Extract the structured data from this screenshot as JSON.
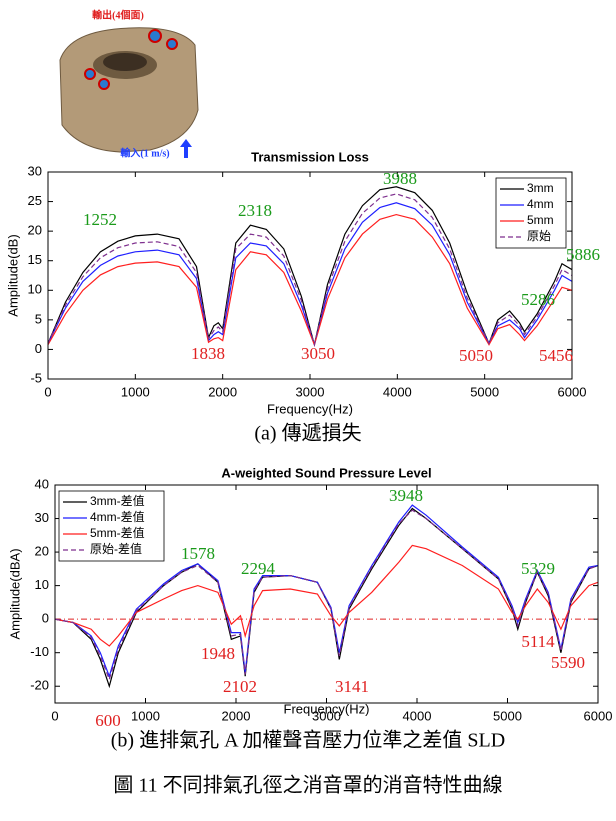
{
  "image_labels": {
    "output": "輸出(4個面)",
    "input": "輸入(1 m/s)"
  },
  "captions": {
    "a": "(a)  傳遞損失",
    "b": "(b)  進排氣孔 A 加權聲音壓力位準之差值 SLD",
    "figure": "圖 11 不同排氣孔徑之消音罩的消音特性曲線"
  },
  "chart_data": [
    {
      "type": "line",
      "title": "Transmission Loss",
      "x_label": "Frequency(Hz)",
      "y_label": "Amplitude(dB)",
      "x": [
        0,
        200,
        400,
        600,
        800,
        1000,
        1252,
        1500,
        1700,
        1838,
        1900,
        1950,
        2000,
        2150,
        2318,
        2500,
        2700,
        2900,
        3050,
        3200,
        3400,
        3600,
        3800,
        3988,
        4200,
        4400,
        4600,
        4800,
        5050,
        5150,
        5286,
        5400,
        5456,
        5600,
        5800,
        5886,
        6000
      ],
      "series": [
        {
          "name": "3mm",
          "color": "#000000",
          "dash": "solid",
          "values": [
            1,
            8,
            13,
            16.5,
            18.3,
            19.2,
            19.5,
            18.7,
            14,
            2,
            4,
            4.5,
            3.5,
            18,
            21,
            20.3,
            17,
            9,
            0.8,
            11,
            19.5,
            24.3,
            27,
            27.5,
            26.5,
            23.5,
            18,
            9.5,
            1,
            5,
            6.5,
            4.5,
            3,
            6,
            11.5,
            14.5,
            13.5
          ]
        },
        {
          "name": "4mm",
          "color": "#1f1fff",
          "dash": "solid",
          "values": [
            1,
            7,
            11.5,
            14.2,
            15.8,
            16.5,
            16.8,
            16,
            12,
            1.5,
            2.5,
            3,
            2.5,
            15.5,
            18,
            17.5,
            14.5,
            7.5,
            0.8,
            9.5,
            17,
            21.5,
            24,
            24.8,
            23.8,
            21,
            16,
            8,
            1,
            4,
            5,
            3.5,
            2,
            5,
            10,
            12.5,
            11.5
          ]
        },
        {
          "name": "5mm",
          "color": "#ff1f1f",
          "dash": "solid",
          "values": [
            0.8,
            6,
            10,
            12.6,
            14,
            14.6,
            14.8,
            14,
            10.5,
            1.2,
            1.8,
            2,
            1.5,
            13.5,
            16.5,
            16,
            13,
            6.5,
            0.8,
            8.5,
            15.5,
            19.5,
            22,
            22.8,
            22,
            19,
            14.5,
            7,
            0.8,
            3.5,
            4.2,
            2.5,
            1.5,
            4,
            8.5,
            10.5,
            10
          ]
        },
        {
          "name": "原始",
          "color": "#7e2f8e",
          "dash": "dashed",
          "values": [
            1,
            7.5,
            12.3,
            15.5,
            17.2,
            18,
            18.2,
            17.4,
            13,
            1.8,
            3.2,
            3.8,
            3,
            17,
            19.5,
            19,
            15.8,
            8.3,
            0.8,
            10.3,
            18.3,
            23,
            25.6,
            26.3,
            25.3,
            22.3,
            17,
            8.7,
            1,
            4.5,
            5.8,
            4,
            2.5,
            5.5,
            10.8,
            13.5,
            12.5
          ]
        }
      ],
      "xlim": [
        0,
        6000
      ],
      "xticks": [
        0,
        1000,
        2000,
        3000,
        4000,
        5000,
        6000
      ],
      "ylim": [
        -5,
        30
      ],
      "yticks": [
        -5,
        0,
        5,
        10,
        15,
        20,
        25,
        30
      ],
      "legend": "upper right",
      "annotations": [
        {
          "text": "1252",
          "color": "#1a9a1a"
        },
        {
          "text": "2318",
          "color": "#1a9a1a"
        },
        {
          "text": "3988",
          "color": "#1a9a1a"
        },
        {
          "text": "5286",
          "color": "#1a9a1a"
        },
        {
          "text": "5886",
          "color": "#1a9a1a"
        },
        {
          "text": "1838",
          "color": "#e02020"
        },
        {
          "text": "3050",
          "color": "#e02020"
        },
        {
          "text": "5050",
          "color": "#e02020"
        },
        {
          "text": "5456",
          "color": "#e02020"
        }
      ]
    },
    {
      "type": "line",
      "title": "A-weighted Sound Pressure Level",
      "x_label": "Frequency(Hz)",
      "y_label": "Amplitude(dBA)",
      "x": [
        0,
        200,
        400,
        500,
        600,
        700,
        900,
        1200,
        1400,
        1578,
        1800,
        1948,
        2050,
        2102,
        2200,
        2294,
        2600,
        2900,
        3050,
        3141,
        3250,
        3500,
        3800,
        3948,
        4100,
        4500,
        4900,
        5050,
        5114,
        5200,
        5329,
        5450,
        5590,
        5700,
        5900,
        6000
      ],
      "series": [
        {
          "name": "3mm-差值",
          "color": "#000000",
          "dash": "solid",
          "values": [
            0,
            -1,
            -6,
            -12,
            -20,
            -10,
            2,
            10,
            14,
            16.5,
            11,
            -6,
            -5,
            -17,
            8,
            12.5,
            13,
            11,
            3,
            -12,
            3,
            15,
            28,
            33,
            30,
            21,
            12,
            3,
            -3,
            5,
            14,
            7,
            -10,
            5,
            15,
            16
          ]
        },
        {
          "name": "4mm-差值",
          "color": "#1f1fff",
          "dash": "solid",
          "values": [
            0,
            -1,
            -5,
            -10,
            -17,
            -8,
            3,
            10.5,
            14.5,
            16.5,
            11.5,
            -4,
            -4,
            -16,
            9,
            13,
            13,
            11,
            3.5,
            -10,
            4,
            16,
            29,
            34,
            31,
            21.5,
            12.5,
            4,
            -1,
            6,
            14.5,
            8,
            -9,
            6,
            15.5,
            16
          ]
        },
        {
          "name": "5mm-差值",
          "color": "#ff1f1f",
          "dash": "solid",
          "values": [
            0,
            -1,
            -3,
            -6,
            -8,
            -5,
            2,
            6,
            8.5,
            10,
            8,
            -1.5,
            1,
            -5,
            4,
            8.5,
            9,
            7.5,
            1,
            -2,
            2,
            8,
            17,
            22,
            21,
            16,
            9,
            2,
            0,
            4,
            9,
            5,
            -3,
            4,
            10,
            11
          ]
        },
        {
          "name": "原始-差值",
          "color": "#7e2f8e",
          "dash": "dashed",
          "values": [
            0,
            -1,
            -5.5,
            -11,
            -18,
            -9,
            2.5,
            10,
            14,
            16,
            11,
            -5,
            -4.5,
            -16.5,
            8.5,
            12.5,
            13,
            11,
            3,
            -11,
            3.5,
            15.5,
            28.5,
            32.5,
            30,
            21,
            12,
            3.5,
            -2,
            5.5,
            14,
            7.5,
            -9.5,
            5.5,
            15,
            16
          ]
        }
      ],
      "xlim": [
        0,
        6000
      ],
      "xticks": [
        0,
        1000,
        2000,
        3000,
        4000,
        5000,
        6000
      ],
      "ylim": [
        -25,
        40
      ],
      "yticks": [
        -20,
        -10,
        0,
        10,
        20,
        30,
        40
      ],
      "legend": "upper left",
      "reference_line": {
        "y": 0,
        "color": "#e02020"
      },
      "annotations": [
        {
          "text": "3948",
          "color": "#1a9a1a"
        },
        {
          "text": "1578",
          "color": "#1a9a1a"
        },
        {
          "text": "2294",
          "color": "#1a9a1a"
        },
        {
          "text": "5329",
          "color": "#1a9a1a"
        },
        {
          "text": "1948",
          "color": "#e02020"
        },
        {
          "text": "600",
          "color": "#e02020"
        },
        {
          "text": "2102",
          "color": "#e02020"
        },
        {
          "text": "3141",
          "color": "#e02020"
        },
        {
          "text": "5114",
          "color": "#e02020"
        },
        {
          "text": "5590",
          "color": "#e02020"
        }
      ]
    }
  ]
}
